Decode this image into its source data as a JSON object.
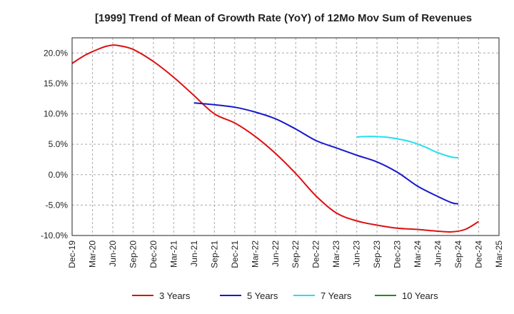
{
  "chart_data": {
    "type": "line",
    "title": "[1999]  Trend of Mean of Growth Rate (YoY) of 12Mo Mov Sum of Revenues",
    "xlabel": "",
    "ylabel": "",
    "ylim": [
      -10,
      22.5
    ],
    "y_ticks": [
      -10,
      -5,
      0,
      5,
      10,
      15,
      20
    ],
    "y_tick_labels": [
      "-10.0%",
      "-5.0%",
      "0.0%",
      "5.0%",
      "10.0%",
      "15.0%",
      "20.0%"
    ],
    "x_range_months": [
      0,
      63
    ],
    "x_tick_labels": [
      "Dec-19",
      "Mar-20",
      "Jun-20",
      "Sep-20",
      "Dec-20",
      "Mar-21",
      "Jun-21",
      "Sep-21",
      "Dec-21",
      "Mar-22",
      "Jun-22",
      "Sep-22",
      "Dec-22",
      "Mar-23",
      "Jun-23",
      "Sep-23",
      "Dec-23",
      "Mar-24",
      "Jun-24",
      "Sep-24",
      "Dec-24",
      "Mar-25"
    ],
    "grid": true,
    "legend_position": "bottom",
    "series": [
      {
        "name": "3 Years",
        "color": "#dd1111",
        "points": [
          [
            0,
            18.3
          ],
          [
            2,
            19.7
          ],
          [
            4,
            20.7
          ],
          [
            5,
            21.1
          ],
          [
            6,
            21.3
          ],
          [
            7,
            21.2
          ],
          [
            9,
            20.6
          ],
          [
            12,
            18.6
          ],
          [
            15,
            16.0
          ],
          [
            18,
            13.0
          ],
          [
            21,
            10.0
          ],
          [
            24,
            8.5
          ],
          [
            27,
            6.3
          ],
          [
            30,
            3.5
          ],
          [
            33,
            0.2
          ],
          [
            36,
            -3.5
          ],
          [
            39,
            -6.3
          ],
          [
            42,
            -7.6
          ],
          [
            45,
            -8.3
          ],
          [
            48,
            -8.8
          ],
          [
            51,
            -9.0
          ],
          [
            54,
            -9.3
          ],
          [
            56,
            -9.4
          ],
          [
            58,
            -9.0
          ],
          [
            60,
            -7.7
          ]
        ]
      },
      {
        "name": "5 Years",
        "color": "#1818cc",
        "points": [
          [
            18,
            11.8
          ],
          [
            21,
            11.5
          ],
          [
            24,
            11.1
          ],
          [
            27,
            10.3
          ],
          [
            30,
            9.2
          ],
          [
            33,
            7.5
          ],
          [
            36,
            5.6
          ],
          [
            39,
            4.4
          ],
          [
            42,
            3.2
          ],
          [
            45,
            2.1
          ],
          [
            48,
            0.4
          ],
          [
            51,
            -1.9
          ],
          [
            54,
            -3.6
          ],
          [
            56,
            -4.6
          ],
          [
            57,
            -4.8
          ]
        ]
      },
      {
        "name": "7 Years",
        "color": "#22e0ee",
        "points": [
          [
            42,
            6.2
          ],
          [
            44,
            6.3
          ],
          [
            46,
            6.2
          ],
          [
            48,
            5.9
          ],
          [
            50,
            5.4
          ],
          [
            52,
            4.6
          ],
          [
            54,
            3.6
          ],
          [
            56,
            2.9
          ],
          [
            57,
            2.8
          ]
        ]
      },
      {
        "name": "10 Years",
        "color": "#228b22",
        "points": []
      }
    ]
  }
}
